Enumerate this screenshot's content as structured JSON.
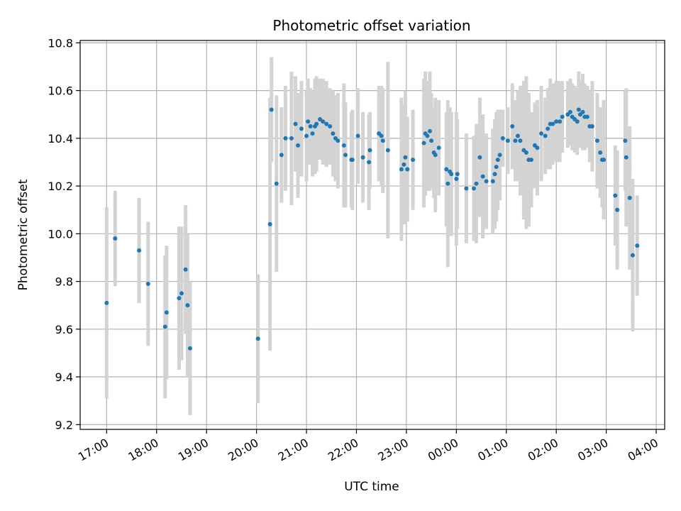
{
  "chart_data": {
    "type": "scatter",
    "title": "Photometric offset variation",
    "xlabel": "UTC time",
    "ylabel": "Photometric offset",
    "x_tick_labels": [
      "17:00",
      "18:00",
      "19:00",
      "20:00",
      "21:00",
      "22:00",
      "23:00",
      "00:00",
      "01:00",
      "02:00",
      "03:00",
      "04:00"
    ],
    "y_tick_labels": [
      "9.2",
      "9.4",
      "9.6",
      "9.8",
      "10.0",
      "10.2",
      "10.4",
      "10.6",
      "10.8"
    ],
    "ylim": [
      9.18,
      10.81
    ],
    "xlim_hours": [
      16.47,
      28.17
    ],
    "grid": true,
    "colors": {
      "points": "#1f77b4",
      "errorbars": "#d3d3d3",
      "grid": "#b0b0b0"
    },
    "series": [
      {
        "x_hours": [
          17.0,
          17.17,
          17.65,
          17.83,
          18.17,
          18.2,
          18.45,
          18.5,
          18.58,
          18.62,
          18.67,
          20.03,
          20.27,
          20.3,
          20.4,
          20.5,
          20.58,
          20.7,
          20.78,
          20.83,
          20.9,
          21.0,
          21.03,
          21.08,
          21.12,
          21.17,
          21.2,
          21.27,
          21.33,
          21.4,
          21.47,
          21.53,
          21.58,
          21.63,
          21.75,
          21.78,
          21.9,
          21.92,
          22.03,
          22.13,
          22.25,
          22.27,
          22.45,
          22.5,
          22.53,
          22.63,
          22.9,
          22.95,
          22.98,
          23.02,
          23.13,
          23.35,
          23.38,
          23.42,
          23.47,
          23.5,
          23.55,
          23.58,
          23.65,
          23.8,
          23.83,
          23.87,
          23.9,
          24.0,
          24.02,
          24.2,
          24.35,
          24.4,
          24.47,
          24.53,
          24.6,
          24.73,
          24.77,
          24.8,
          24.83,
          24.87,
          24.93,
          25.03,
          25.12,
          25.18,
          25.23,
          25.28,
          25.35,
          25.4,
          25.45,
          25.5,
          25.57,
          25.62,
          25.7,
          25.78,
          25.83,
          25.88,
          25.93,
          26.0,
          26.07,
          26.12,
          26.23,
          26.28,
          26.32,
          26.37,
          26.42,
          26.45,
          26.48,
          26.53,
          26.57,
          26.62,
          26.67,
          26.72,
          26.82,
          26.88,
          26.92,
          26.95,
          27.18,
          27.22,
          27.38,
          27.4,
          27.47,
          27.53,
          27.62
        ],
        "y": [
          9.71,
          9.98,
          9.93,
          9.79,
          9.61,
          9.67,
          9.73,
          9.75,
          9.85,
          9.7,
          9.52,
          9.56,
          10.04,
          10.52,
          10.21,
          10.33,
          10.4,
          10.4,
          10.46,
          10.37,
          10.44,
          10.41,
          10.47,
          10.45,
          10.42,
          10.45,
          10.46,
          10.48,
          10.47,
          10.46,
          10.45,
          10.42,
          10.4,
          10.39,
          10.37,
          10.33,
          10.31,
          10.31,
          10.41,
          10.32,
          10.3,
          10.35,
          10.42,
          10.41,
          10.39,
          10.35,
          10.27,
          10.29,
          10.32,
          10.27,
          10.31,
          10.38,
          10.42,
          10.41,
          10.43,
          10.39,
          10.34,
          10.33,
          10.36,
          10.27,
          10.21,
          10.26,
          10.25,
          10.23,
          10.25,
          10.19,
          10.19,
          10.21,
          10.32,
          10.24,
          10.22,
          10.22,
          10.25,
          10.28,
          10.31,
          10.33,
          10.4,
          10.39,
          10.45,
          10.39,
          10.41,
          10.39,
          10.35,
          10.34,
          10.31,
          10.31,
          10.37,
          10.36,
          10.42,
          10.41,
          10.44,
          10.46,
          10.46,
          10.47,
          10.47,
          10.49,
          10.5,
          10.51,
          10.49,
          10.48,
          10.47,
          10.52,
          10.5,
          10.51,
          10.49,
          10.49,
          10.45,
          10.45,
          10.39,
          10.34,
          10.31,
          10.31,
          10.16,
          10.1,
          10.39,
          10.32,
          10.15,
          9.91,
          9.95
        ],
        "yerr": [
          0.4,
          0.2,
          0.22,
          0.26,
          0.3,
          0.28,
          0.3,
          0.28,
          0.27,
          0.3,
          0.28,
          0.27,
          0.53,
          0.22,
          0.37,
          0.2,
          0.22,
          0.28,
          0.2,
          0.22,
          0.2,
          0.19,
          0.18,
          0.16,
          0.18,
          0.2,
          0.2,
          0.17,
          0.18,
          0.18,
          0.16,
          0.18,
          0.18,
          0.2,
          0.26,
          0.22,
          0.2,
          0.21,
          0.2,
          0.19,
          0.2,
          0.16,
          0.2,
          0.21,
          0.22,
          0.37,
          0.3,
          0.25,
          0.28,
          0.22,
          0.21,
          0.27,
          0.26,
          0.23,
          0.25,
          0.2,
          0.19,
          0.24,
          0.2,
          0.24,
          0.35,
          0.27,
          0.26,
          0.28,
          0.23,
          0.23,
          0.22,
          0.25,
          0.25,
          0.26,
          0.2,
          0.22,
          0.23,
          0.23,
          0.21,
          0.19,
          0.12,
          0.14,
          0.18,
          0.17,
          0.19,
          0.23,
          0.29,
          0.32,
          0.28,
          0.2,
          0.18,
          0.2,
          0.2,
          0.16,
          0.17,
          0.19,
          0.17,
          0.17,
          0.17,
          0.15,
          0.14,
          0.14,
          0.14,
          0.14,
          0.14,
          0.16,
          0.14,
          0.16,
          0.14,
          0.13,
          0.15,
          0.19,
          0.2,
          0.19,
          0.2,
          0.25,
          0.21,
          0.25,
          0.21,
          0.29,
          0.3,
          0.32,
          0.21
        ]
      }
    ]
  }
}
